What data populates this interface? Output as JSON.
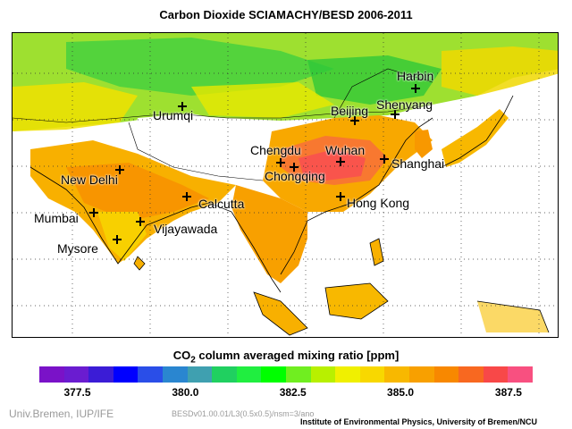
{
  "title": "Carbon Dioxide SCIAMACHY/BESD 2006-2011",
  "legend": {
    "title_prefix": "CO",
    "title_sub": "2",
    "title_suffix": " column averaged mixing ratio [ppm]",
    "colors": [
      "#7a12c8",
      "#6a1cd0",
      "#3b1cd6",
      "#0000ff",
      "#2a4ee8",
      "#2a86d0",
      "#3fa0b0",
      "#20d060",
      "#20ee40",
      "#00ff00",
      "#70ee20",
      "#b8f000",
      "#f0f000",
      "#f8d800",
      "#f8b800",
      "#f8a000",
      "#f88800",
      "#f86820",
      "#f84848",
      "#f85080"
    ],
    "ticks": [
      {
        "label": "377.5",
        "frac": 0.077
      },
      {
        "label": "380.0",
        "frac": 0.296
      },
      {
        "label": "382.5",
        "frac": 0.514
      },
      {
        "label": "385.0",
        "frac": 0.732
      },
      {
        "label": "387.5",
        "frac": 0.951
      }
    ]
  },
  "cities": [
    {
      "name": "Harbin"
    },
    {
      "name": "Shenyang"
    },
    {
      "name": "Beijing"
    },
    {
      "name": "Urumqi"
    },
    {
      "name": "Chengdu"
    },
    {
      "name": "Wuhan"
    },
    {
      "name": "Chongqing"
    },
    {
      "name": "Shanghai"
    },
    {
      "name": "New Delhi"
    },
    {
      "name": "Calcutta"
    },
    {
      "name": "Hong Kong"
    },
    {
      "name": "Mumbai"
    },
    {
      "name": "Vijayawada"
    },
    {
      "name": "Mysore"
    }
  ],
  "footer": {
    "left": "Univ.Bremen, IUP/IFE",
    "middle": "BESDv01.00.01/L3(0.5x0.5)/nsm=3/ano",
    "right": "Institute of Environmental Physics, University of Bremen/NCU"
  }
}
